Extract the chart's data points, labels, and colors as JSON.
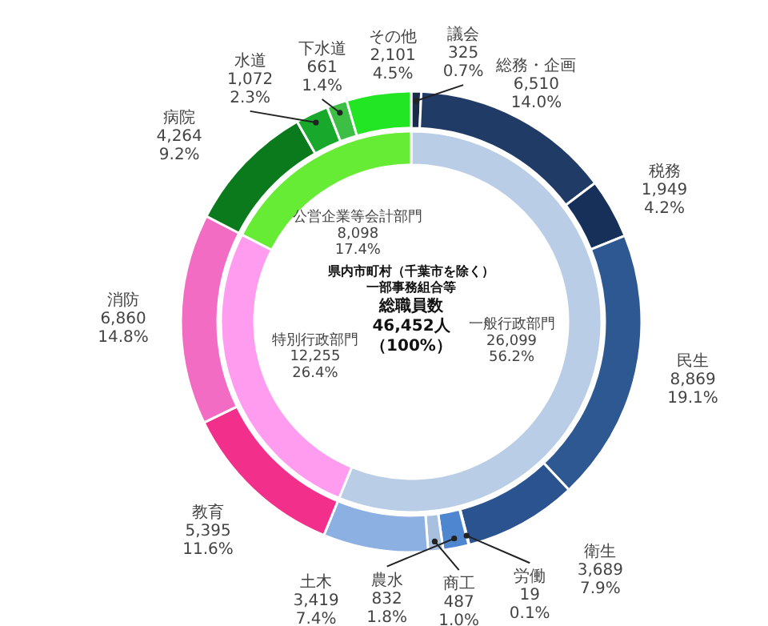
{
  "chart_data": [
    {
      "type": "donut",
      "categories": [
        "議会",
        "総務・企画",
        "税務",
        "民生",
        "衛生",
        "労働",
        "農水",
        "商工",
        "土木",
        "教育",
        "消防",
        "病院",
        "水道",
        "下水道",
        "その他"
      ],
      "values": [
        325,
        6510,
        1949,
        8869,
        3689,
        19,
        832,
        487,
        3419,
        5395,
        6860,
        4264,
        1072,
        661,
        2101
      ],
      "value_labels": [
        "325\n0.7%",
        "6,510\n14.0%",
        "1,949\n4.2%",
        "8,869\n19.1%",
        "3,689\n7.9%",
        "19\n0.1%",
        "832\n1.8%",
        "487\n1.0%",
        "3,419\n7.4%",
        "5,395\n11.6%",
        "6,860\n14.8%",
        "4,264\n9.2%",
        "1,072\n2.3%",
        "661\n1.4%",
        "2,101\n4.5%"
      ],
      "colors": [
        "#1a2a48",
        "#1f3b66",
        "#16305a",
        "#2d5892",
        "#2b5390",
        "#3466a8",
        "#4f86d0",
        "#a9bfdf",
        "#8db0e2",
        "#f2308c",
        "#f26cc4",
        "#0b7a1c",
        "#17a82c",
        "#3cbf44",
        "#22e624"
      ]
    },
    {
      "type": "donut",
      "categories": [
        "一般行政部門",
        "特別行政部門",
        "公営企業等会計部門"
      ],
      "values": [
        26099,
        12255,
        8098
      ],
      "value_labels": [
        "26,099\n56.2%",
        "12,255\n26.4%",
        "8,098\n17.4%"
      ],
      "colors": [
        "#b9cde6",
        "#ff9cef",
        "#66ec34"
      ],
      "annotations": [
        "県内市町村（千葉市を除く）",
        "一部事務組合等",
        "総職員数",
        "46,452人",
        "（100%）"
      ]
    }
  ]
}
